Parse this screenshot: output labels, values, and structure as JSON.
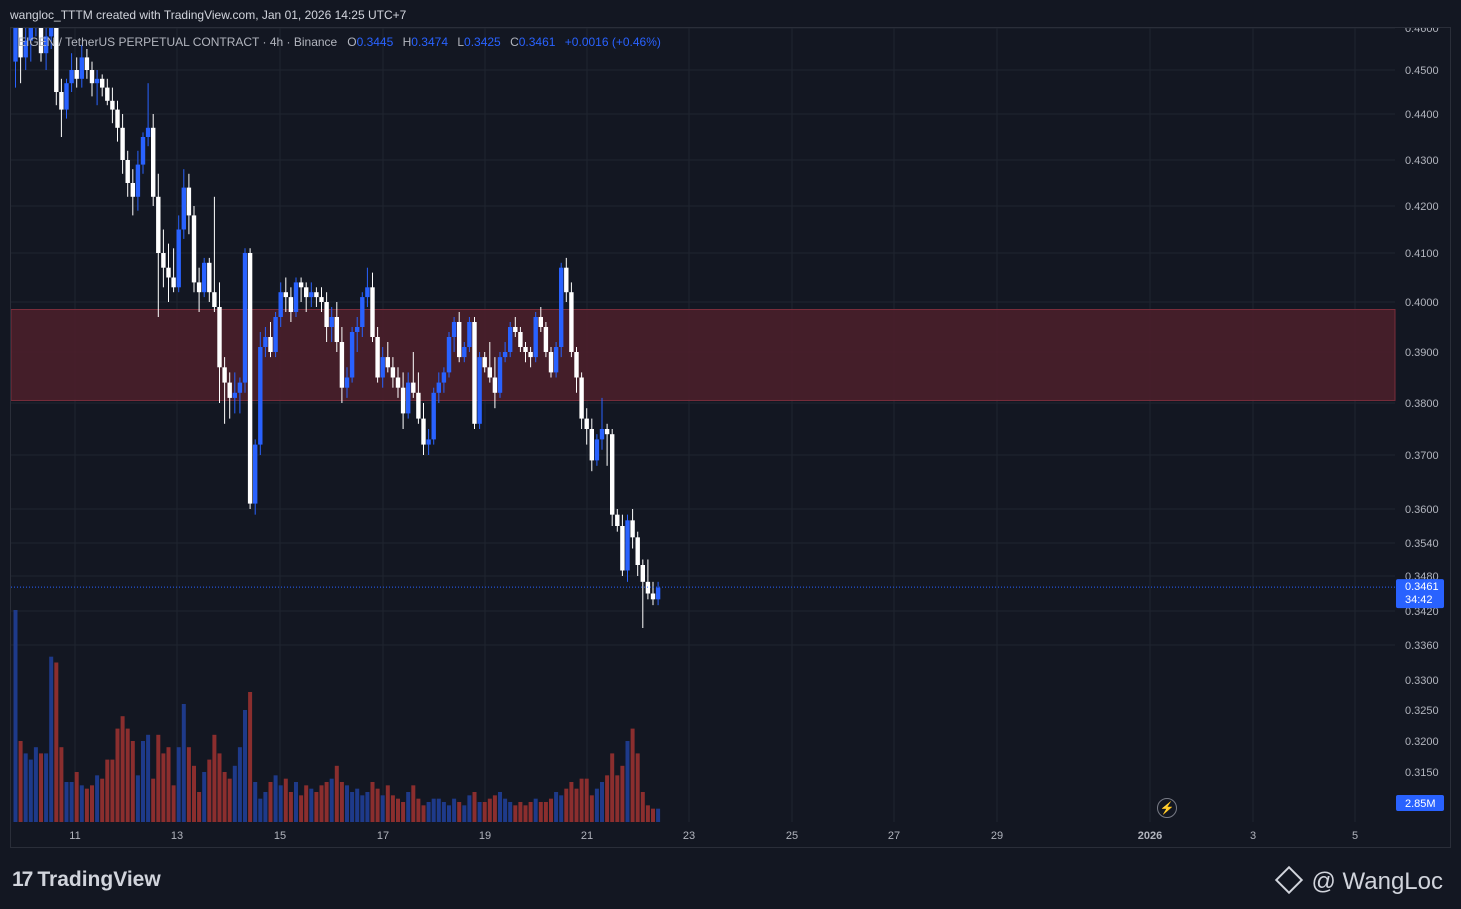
{
  "header": {
    "credit": "wangloc_TTTM created with TradingView.com, Jan 01, 2026 14:25 UTC+7"
  },
  "legend": {
    "symbol": "EIGEN / TetherUS PERPETUAL CONTRACT · 4h · Binance",
    "o_label": "O",
    "o": "0.3445",
    "h_label": "H",
    "h": "0.3474",
    "l_label": "L",
    "l": "0.3425",
    "c_label": "C",
    "c": "0.3461",
    "change": "+0.0016 (+0.46%)"
  },
  "price_tag": {
    "price": "0.3461",
    "countdown": "34:42"
  },
  "volume_tag": "2.85M",
  "footer": {
    "brand": "TradingView",
    "watermark": "@ WangLoc"
  },
  "colors": {
    "bg": "#131722",
    "up": "#2962ff",
    "down": "#ffffff",
    "vol_up": "#1e3a8a",
    "vol_down": "#8b2e2e",
    "zone": "#4a1f2a",
    "grid": "#1f2430",
    "axis_text": "#b2b5be"
  },
  "chart_data": {
    "type": "candlestick",
    "symbol": "EIGEN / TetherUS PERPETUAL CONTRACT",
    "interval": "4h",
    "exchange": "Binance",
    "x_ticks": [
      "11",
      "13",
      "15",
      "17",
      "19",
      "21",
      "23",
      "25",
      "27",
      "29",
      "2026",
      "3",
      "5"
    ],
    "y_ticks": [
      0.336,
      0.342,
      0.348,
      0.354,
      0.36,
      0.37,
      0.38,
      0.39,
      0.4,
      0.41,
      0.42,
      0.43,
      0.44,
      0.45,
      0.46
    ],
    "volume_ticks": [
      0.315,
      0.32,
      0.325,
      0.33
    ],
    "ylim": [
      0.336,
      0.4605
    ],
    "zone": {
      "low": 0.3805,
      "high": 0.3985
    },
    "last_price": 0.3461,
    "candles": [
      [
        0.452,
        0.464,
        0.446,
        0.46
      ],
      [
        0.46,
        0.462,
        0.447,
        0.453
      ],
      [
        0.453,
        0.461,
        0.45,
        0.457
      ],
      [
        0.457,
        0.466,
        0.452,
        0.463
      ],
      [
        0.463,
        0.468,
        0.458,
        0.465
      ],
      [
        0.465,
        0.466,
        0.452,
        0.454
      ],
      [
        0.454,
        0.46,
        0.45,
        0.458
      ],
      [
        0.458,
        0.462,
        0.455,
        0.46
      ],
      [
        0.46,
        0.463,
        0.442,
        0.445
      ],
      [
        0.445,
        0.448,
        0.435,
        0.441
      ],
      [
        0.441,
        0.448,
        0.439,
        0.447
      ],
      [
        0.447,
        0.454,
        0.445,
        0.45
      ],
      [
        0.45,
        0.453,
        0.446,
        0.448
      ],
      [
        0.448,
        0.456,
        0.446,
        0.453
      ],
      [
        0.453,
        0.455,
        0.448,
        0.45
      ],
      [
        0.45,
        0.452,
        0.444,
        0.447
      ],
      [
        0.447,
        0.45,
        0.442,
        0.448
      ],
      [
        0.448,
        0.449,
        0.444,
        0.446
      ],
      [
        0.446,
        0.448,
        0.442,
        0.443
      ],
      [
        0.443,
        0.446,
        0.438,
        0.441
      ],
      [
        0.441,
        0.443,
        0.434,
        0.437
      ],
      [
        0.437,
        0.44,
        0.427,
        0.43
      ],
      [
        0.43,
        0.432,
        0.422,
        0.425
      ],
      [
        0.425,
        0.428,
        0.418,
        0.422
      ],
      [
        0.422,
        0.432,
        0.419,
        0.429
      ],
      [
        0.429,
        0.436,
        0.427,
        0.435
      ],
      [
        0.435,
        0.447,
        0.433,
        0.437
      ],
      [
        0.437,
        0.44,
        0.42,
        0.422
      ],
      [
        0.422,
        0.427,
        0.397,
        0.41
      ],
      [
        0.41,
        0.415,
        0.403,
        0.407
      ],
      [
        0.407,
        0.412,
        0.4,
        0.405
      ],
      [
        0.405,
        0.411,
        0.402,
        0.403
      ],
      [
        0.403,
        0.418,
        0.402,
        0.415
      ],
      [
        0.415,
        0.428,
        0.413,
        0.424
      ],
      [
        0.424,
        0.427,
        0.414,
        0.418
      ],
      [
        0.418,
        0.42,
        0.402,
        0.404
      ],
      [
        0.404,
        0.407,
        0.398,
        0.402
      ],
      [
        0.402,
        0.409,
        0.401,
        0.408
      ],
      [
        0.408,
        0.409,
        0.4,
        0.402
      ],
      [
        0.402,
        0.422,
        0.398,
        0.399
      ],
      [
        0.399,
        0.404,
        0.38,
        0.387
      ],
      [
        0.387,
        0.389,
        0.376,
        0.384
      ],
      [
        0.384,
        0.386,
        0.377,
        0.381
      ],
      [
        0.381,
        0.386,
        0.378,
        0.382
      ],
      [
        0.382,
        0.385,
        0.378,
        0.384
      ],
      [
        0.384,
        0.411,
        0.382,
        0.41
      ],
      [
        0.41,
        0.411,
        0.36,
        0.361
      ],
      [
        0.361,
        0.373,
        0.359,
        0.372
      ],
      [
        0.372,
        0.394,
        0.37,
        0.391
      ],
      [
        0.391,
        0.395,
        0.389,
        0.393
      ],
      [
        0.393,
        0.396,
        0.389,
        0.39
      ],
      [
        0.39,
        0.398,
        0.389,
        0.397
      ],
      [
        0.397,
        0.404,
        0.395,
        0.402
      ],
      [
        0.402,
        0.405,
        0.398,
        0.401
      ],
      [
        0.401,
        0.403,
        0.396,
        0.398
      ],
      [
        0.398,
        0.405,
        0.397,
        0.404
      ],
      [
        0.404,
        0.405,
        0.4,
        0.403
      ],
      [
        0.403,
        0.404,
        0.398,
        0.401
      ],
      [
        0.401,
        0.404,
        0.399,
        0.402
      ],
      [
        0.402,
        0.403,
        0.399,
        0.401
      ],
      [
        0.401,
        0.403,
        0.398,
        0.4
      ],
      [
        0.4,
        0.402,
        0.392,
        0.395
      ],
      [
        0.395,
        0.399,
        0.392,
        0.397
      ],
      [
        0.397,
        0.4,
        0.39,
        0.392
      ],
      [
        0.392,
        0.395,
        0.38,
        0.383
      ],
      [
        0.383,
        0.387,
        0.381,
        0.385
      ],
      [
        0.385,
        0.395,
        0.384,
        0.394
      ],
      [
        0.394,
        0.397,
        0.39,
        0.395
      ],
      [
        0.395,
        0.402,
        0.393,
        0.401
      ],
      [
        0.401,
        0.407,
        0.399,
        0.403
      ],
      [
        0.403,
        0.406,
        0.392,
        0.393
      ],
      [
        0.393,
        0.395,
        0.384,
        0.385
      ],
      [
        0.385,
        0.391,
        0.383,
        0.389
      ],
      [
        0.389,
        0.392,
        0.386,
        0.387
      ],
      [
        0.387,
        0.389,
        0.383,
        0.385
      ],
      [
        0.385,
        0.387,
        0.381,
        0.383
      ],
      [
        0.383,
        0.386,
        0.375,
        0.378
      ],
      [
        0.378,
        0.386,
        0.377,
        0.384
      ],
      [
        0.384,
        0.39,
        0.381,
        0.382
      ],
      [
        0.382,
        0.386,
        0.376,
        0.377
      ],
      [
        0.377,
        0.38,
        0.37,
        0.372
      ],
      [
        0.372,
        0.375,
        0.37,
        0.373
      ],
      [
        0.373,
        0.383,
        0.372,
        0.382
      ],
      [
        0.382,
        0.386,
        0.38,
        0.384
      ],
      [
        0.384,
        0.387,
        0.382,
        0.386
      ],
      [
        0.386,
        0.394,
        0.385,
        0.393
      ],
      [
        0.393,
        0.397,
        0.39,
        0.396
      ],
      [
        0.396,
        0.398,
        0.388,
        0.389
      ],
      [
        0.389,
        0.392,
        0.388,
        0.391
      ],
      [
        0.391,
        0.397,
        0.39,
        0.396
      ],
      [
        0.396,
        0.397,
        0.375,
        0.376
      ],
      [
        0.376,
        0.39,
        0.375,
        0.389
      ],
      [
        0.389,
        0.39,
        0.386,
        0.387
      ],
      [
        0.387,
        0.392,
        0.384,
        0.385
      ],
      [
        0.385,
        0.389,
        0.379,
        0.382
      ],
      [
        0.382,
        0.39,
        0.381,
        0.389
      ],
      [
        0.389,
        0.392,
        0.388,
        0.39
      ],
      [
        0.39,
        0.396,
        0.389,
        0.395
      ],
      [
        0.395,
        0.397,
        0.393,
        0.394
      ],
      [
        0.394,
        0.395,
        0.39,
        0.391
      ],
      [
        0.391,
        0.392,
        0.388,
        0.39
      ],
      [
        0.39,
        0.391,
        0.387,
        0.389
      ],
      [
        0.389,
        0.398,
        0.388,
        0.397
      ],
      [
        0.397,
        0.399,
        0.394,
        0.395
      ],
      [
        0.395,
        0.396,
        0.389,
        0.39
      ],
      [
        0.39,
        0.391,
        0.385,
        0.386
      ],
      [
        0.386,
        0.392,
        0.385,
        0.391
      ],
      [
        0.391,
        0.408,
        0.389,
        0.407
      ],
      [
        0.407,
        0.409,
        0.4,
        0.402
      ],
      [
        0.402,
        0.404,
        0.389,
        0.39
      ],
      [
        0.39,
        0.391,
        0.382,
        0.385
      ],
      [
        0.385,
        0.386,
        0.375,
        0.377
      ],
      [
        0.377,
        0.379,
        0.372,
        0.375
      ],
      [
        0.375,
        0.377,
        0.367,
        0.369
      ],
      [
        0.369,
        0.374,
        0.368,
        0.373
      ],
      [
        0.373,
        0.381,
        0.371,
        0.375
      ],
      [
        0.375,
        0.376,
        0.368,
        0.374
      ],
      [
        0.374,
        0.375,
        0.357,
        0.359
      ],
      [
        0.359,
        0.36,
        0.356,
        0.357
      ],
      [
        0.357,
        0.359,
        0.348,
        0.349
      ],
      [
        0.349,
        0.359,
        0.347,
        0.358
      ],
      [
        0.358,
        0.36,
        0.353,
        0.355
      ],
      [
        0.355,
        0.356,
        0.348,
        0.35
      ],
      [
        0.35,
        0.351,
        0.339,
        0.347
      ],
      [
        0.347,
        0.351,
        0.344,
        0.345
      ],
      [
        0.345,
        0.347,
        0.343,
        0.344
      ],
      [
        0.344,
        0.347,
        0.343,
        0.346
      ]
    ],
    "volume": [
      0.343,
      0.32,
      0.318,
      0.317,
      0.319,
      0.318,
      0.318,
      0.334,
      0.333,
      0.319,
      0.312,
      0.312,
      0.315,
      0.311,
      0.31,
      0.311,
      0.314,
      0.313,
      0.317,
      0.317,
      0.322,
      0.324,
      0.322,
      0.32,
      0.314,
      0.32,
      0.321,
      0.313,
      0.321,
      0.318,
      0.319,
      0.311,
      0.319,
      0.326,
      0.319,
      0.316,
      0.309,
      0.315,
      0.317,
      0.321,
      0.318,
      0.315,
      0.313,
      0.316,
      0.319,
      0.325,
      0.328,
      0.312,
      0.307,
      0.309,
      0.312,
      0.314,
      0.311,
      0.313,
      0.309,
      0.312,
      0.308,
      0.311,
      0.31,
      0.309,
      0.311,
      0.312,
      0.313,
      0.316,
      0.312,
      0.311,
      0.309,
      0.31,
      0.308,
      0.309,
      0.312,
      0.31,
      0.308,
      0.311,
      0.308,
      0.307,
      0.306,
      0.309,
      0.311,
      0.307,
      0.305,
      0.306,
      0.307,
      0.307,
      0.306,
      0.305,
      0.307,
      0.306,
      0.305,
      0.308,
      0.309,
      0.306,
      0.306,
      0.307,
      0.308,
      0.309,
      0.307,
      0.306,
      0.305,
      0.306,
      0.305,
      0.306,
      0.307,
      0.306,
      0.306,
      0.307,
      0.309,
      0.308,
      0.31,
      0.312,
      0.31,
      0.313,
      0.313,
      0.308,
      0.31,
      0.312,
      0.314,
      0.318,
      0.314,
      0.316,
      0.32,
      0.322,
      0.318,
      0.309,
      0.305,
      0.304,
      0.304
    ]
  }
}
